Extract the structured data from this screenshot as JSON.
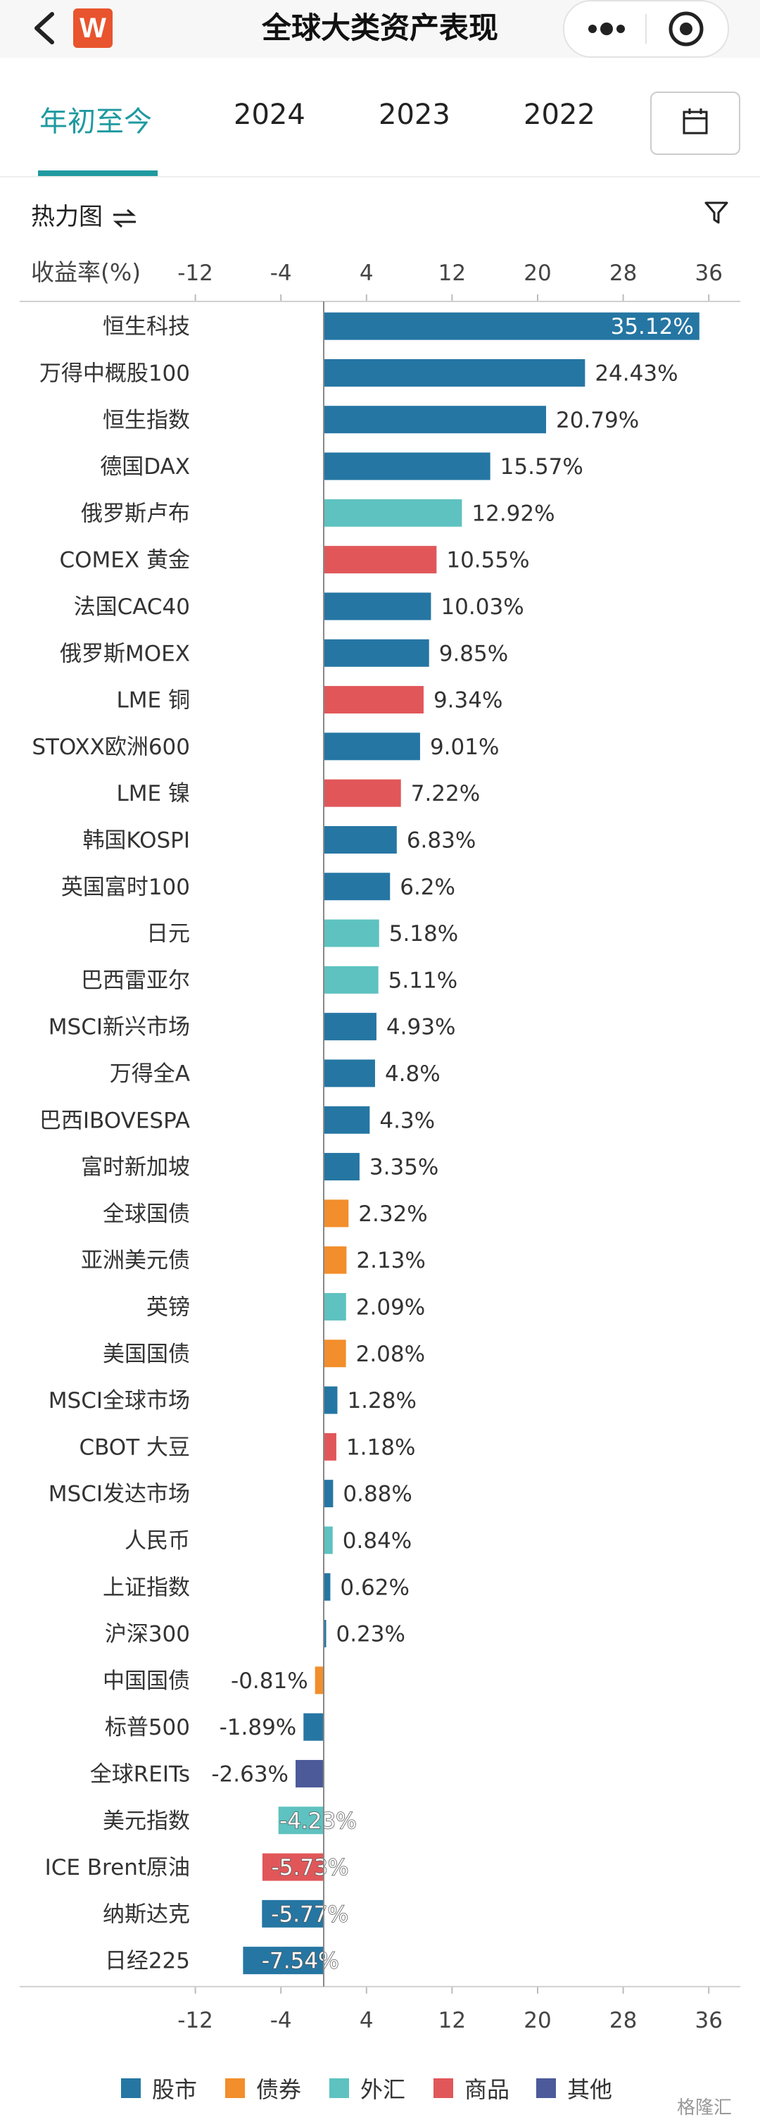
{
  "header": {
    "title": "全球大类资产表现",
    "logo_letter": "W",
    "back_icon": "chevron-left-icon",
    "more_icon": "more-dots-icon",
    "target_icon": "target-icon"
  },
  "tabs": [
    {
      "label": "年初至今",
      "active": true
    },
    {
      "label": "2024",
      "active": false
    },
    {
      "label": "2023",
      "active": false
    },
    {
      "label": "2022",
      "active": false
    }
  ],
  "toolbar": {
    "heatmap_label": "热力图",
    "calendar_icon": "calendar-icon",
    "filter_icon": "filter-icon",
    "toggle_icon": "toggle-icon"
  },
  "colors": {
    "股市": "#2576a3",
    "债券": "#f28e2b",
    "外汇": "#5ec2c0",
    "商品": "#e15759",
    "其他": "#4c5a9a",
    "accent": "#1e9aa0"
  },
  "legend": [
    {
      "label": "股市",
      "key": "股市"
    },
    {
      "label": "债券",
      "key": "债券"
    },
    {
      "label": "外汇",
      "key": "外汇"
    },
    {
      "label": "商品",
      "key": "商品"
    },
    {
      "label": "其他",
      "key": "其他"
    }
  ],
  "watermark": "格隆汇",
  "chart_data": {
    "type": "bar",
    "orientation": "horizontal",
    "ylabel": "收益率(%)",
    "xticks": [
      -12,
      -4,
      4,
      12,
      20,
      28,
      36
    ],
    "xlim": [
      -16,
      40
    ],
    "value_suffix": "%",
    "grid": false,
    "legend_position": "bottom",
    "items": [
      {
        "name": "恒生科技",
        "value": 35.12,
        "label": "35.12%",
        "cat": "股市"
      },
      {
        "name": "万得中概股100",
        "value": 24.43,
        "label": "24.43%",
        "cat": "股市"
      },
      {
        "name": "恒生指数",
        "value": 20.79,
        "label": "20.79%",
        "cat": "股市"
      },
      {
        "name": "德国DAX",
        "value": 15.57,
        "label": "15.57%",
        "cat": "股市"
      },
      {
        "name": "俄罗斯卢布",
        "value": 12.92,
        "label": "12.92%",
        "cat": "外汇"
      },
      {
        "name": "COMEX 黄金",
        "value": 10.55,
        "label": "10.55%",
        "cat": "商品"
      },
      {
        "name": "法国CAC40",
        "value": 10.03,
        "label": "10.03%",
        "cat": "股市"
      },
      {
        "name": "俄罗斯MOEX",
        "value": 9.85,
        "label": "9.85%",
        "cat": "股市"
      },
      {
        "name": "LME 铜",
        "value": 9.34,
        "label": "9.34%",
        "cat": "商品"
      },
      {
        "name": "STOXX欧洲600",
        "value": 9.01,
        "label": "9.01%",
        "cat": "股市"
      },
      {
        "name": "LME 镍",
        "value": 7.22,
        "label": "7.22%",
        "cat": "商品"
      },
      {
        "name": "韩国KOSPI",
        "value": 6.83,
        "label": "6.83%",
        "cat": "股市"
      },
      {
        "name": "英国富时100",
        "value": 6.2,
        "label": "6.2%",
        "cat": "股市"
      },
      {
        "name": "日元",
        "value": 5.18,
        "label": "5.18%",
        "cat": "外汇"
      },
      {
        "name": "巴西雷亚尔",
        "value": 5.11,
        "label": "5.11%",
        "cat": "外汇"
      },
      {
        "name": "MSCI新兴市场",
        "value": 4.93,
        "label": "4.93%",
        "cat": "股市"
      },
      {
        "name": "万得全A",
        "value": 4.8,
        "label": "4.8%",
        "cat": "股市"
      },
      {
        "name": "巴西IBOVESPA",
        "value": 4.3,
        "label": "4.3%",
        "cat": "股市"
      },
      {
        "name": "富时新加坡",
        "value": 3.35,
        "label": "3.35%",
        "cat": "股市"
      },
      {
        "name": "全球国债",
        "value": 2.32,
        "label": "2.32%",
        "cat": "债券"
      },
      {
        "name": "亚洲美元债",
        "value": 2.13,
        "label": "2.13%",
        "cat": "债券"
      },
      {
        "name": "英镑",
        "value": 2.09,
        "label": "2.09%",
        "cat": "外汇"
      },
      {
        "name": "美国国债",
        "value": 2.08,
        "label": "2.08%",
        "cat": "债券"
      },
      {
        "name": "MSCI全球市场",
        "value": 1.28,
        "label": "1.28%",
        "cat": "股市"
      },
      {
        "name": "CBOT 大豆",
        "value": 1.18,
        "label": "1.18%",
        "cat": "商品"
      },
      {
        "name": "MSCI发达市场",
        "value": 0.88,
        "label": "0.88%",
        "cat": "股市"
      },
      {
        "name": "人民币",
        "value": 0.84,
        "label": "0.84%",
        "cat": "外汇"
      },
      {
        "name": "上证指数",
        "value": 0.62,
        "label": "0.62%",
        "cat": "股市"
      },
      {
        "name": "沪深300",
        "value": 0.23,
        "label": "0.23%",
        "cat": "股市"
      },
      {
        "name": "中国国债",
        "value": -0.81,
        "label": "-0.81%",
        "cat": "债券"
      },
      {
        "name": "标普500",
        "value": -1.89,
        "label": "-1.89%",
        "cat": "股市"
      },
      {
        "name": "全球REITs",
        "value": -2.63,
        "label": "-2.63%",
        "cat": "其他"
      },
      {
        "name": "美元指数",
        "value": -4.23,
        "label": "-4.23%",
        "cat": "外汇"
      },
      {
        "name": "ICE Brent原油",
        "value": -5.73,
        "label": "-5.73%",
        "cat": "商品"
      },
      {
        "name": "纳斯达克",
        "value": -5.77,
        "label": "-5.77%",
        "cat": "股市"
      },
      {
        "name": "日经225",
        "value": -7.54,
        "label": "-7.54%",
        "cat": "股市"
      }
    ]
  }
}
